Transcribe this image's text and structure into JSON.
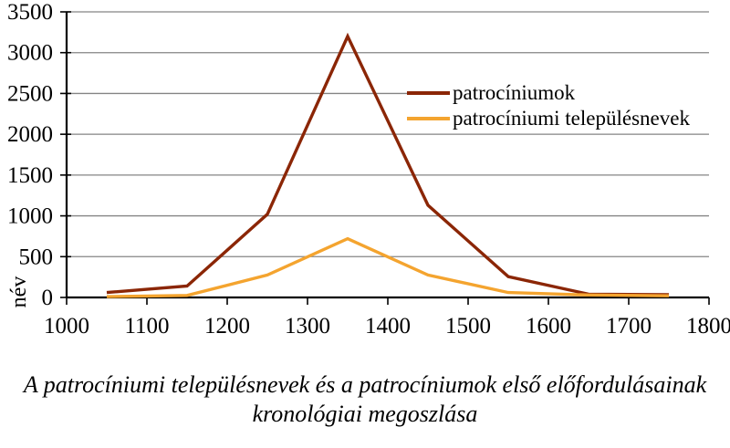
{
  "figure": {
    "caption_line1": "A patrocíniumi településnevek és a patrocíniumok első előfordulásainak",
    "caption_line2": "kronológiai megoszlása"
  },
  "chart_data": {
    "type": "line",
    "title": "",
    "xlabel": "",
    "ylabel": "név",
    "x": [
      1050,
      1150,
      1250,
      1350,
      1450,
      1550,
      1650,
      1750
    ],
    "series": [
      {
        "name": "patrocíniumok",
        "color": "#8B2606",
        "values": [
          60,
          140,
          1020,
          3200,
          1130,
          255,
          40,
          35
        ]
      },
      {
        "name": "patrocíniumi településnevek",
        "color": "#F4A42F",
        "values": [
          10,
          25,
          275,
          720,
          275,
          60,
          30,
          20
        ]
      }
    ],
    "xlim": [
      1000,
      1800
    ],
    "ylim": [
      0,
      3500
    ],
    "x_ticks": [
      1000,
      1100,
      1200,
      1300,
      1400,
      1500,
      1600,
      1700,
      1800
    ],
    "y_ticks": [
      0,
      500,
      1000,
      1500,
      2000,
      2500,
      3000,
      3500
    ],
    "grid": "horizontal",
    "legend_position": "inside-top-right",
    "colors": {
      "gridline": "#848484",
      "axis": "#000000",
      "text": "#000000",
      "background": "#ffffff"
    }
  }
}
